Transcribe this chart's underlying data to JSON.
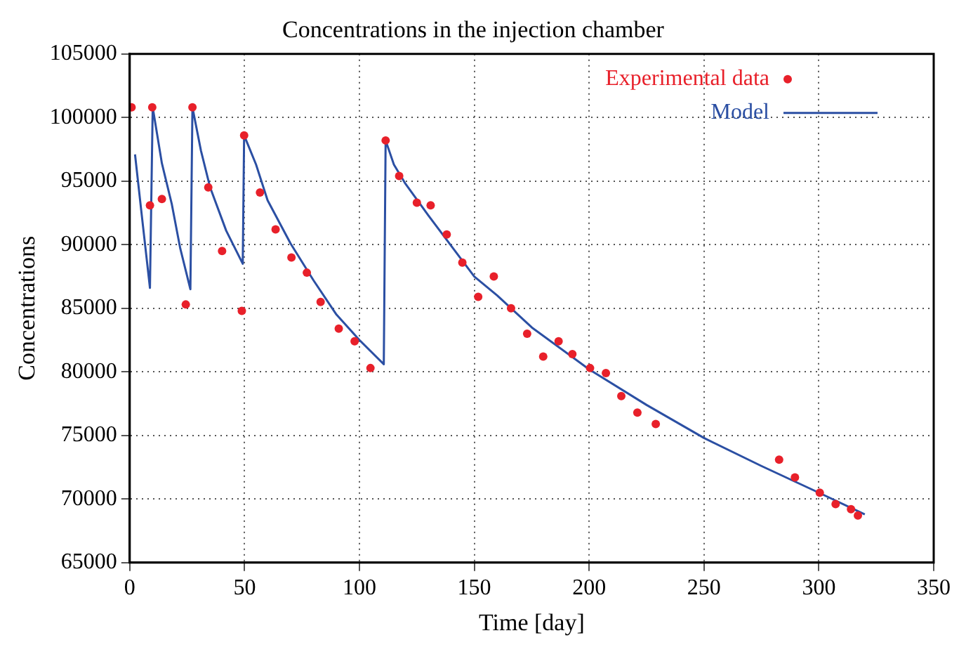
{
  "chart_data": {
    "type": "scatter",
    "title": "Concentrations in the injection chamber",
    "xlabel": "Time [day]",
    "ylabel": "Concentrations",
    "xlim": [
      0,
      350
    ],
    "xticks": [
      0,
      50,
      100,
      150,
      200,
      250,
      300,
      350
    ],
    "ylim": [
      65000,
      105000
    ],
    "yticks": [
      65000,
      70000,
      75000,
      80000,
      85000,
      90000,
      95000,
      100000,
      105000
    ],
    "grid": true,
    "legend": "top right",
    "series": [
      {
        "name": "Experimental data",
        "type": "scatter",
        "marker": "circle",
        "color": "#e8202a",
        "x": [
          0.8,
          8.8,
          9.8,
          14,
          24.4,
          27.3,
          34.2,
          40.2,
          48.8,
          49.8,
          56.7,
          63.5,
          70.4,
          77.1,
          83.1,
          91,
          97.9,
          104.8,
          111.4,
          117.3,
          125,
          131,
          138,
          144.8,
          151.7,
          158.5,
          166,
          173,
          180,
          186.7,
          192.7,
          200.4,
          207.3,
          214,
          221,
          229,
          282.7,
          289.6,
          300.4,
          307.3,
          314,
          317
        ],
        "values": [
          100800,
          93100,
          100800,
          93600,
          85300,
          100800,
          94500,
          89500,
          84800,
          98600,
          94100,
          91200,
          89000,
          87800,
          85500,
          83400,
          82400,
          80300,
          98200,
          95400,
          93300,
          93100,
          90800,
          88600,
          85900,
          87500,
          85000,
          83000,
          81200,
          82400,
          81400,
          80300,
          79900,
          78100,
          76800,
          75900,
          73100,
          71700,
          70500,
          69600,
          69200,
          68700
        ]
      },
      {
        "name": "Model",
        "type": "line",
        "marker": "none",
        "color": "#2b4fa3",
        "x": [
          2.3,
          5,
          8.8,
          10,
          14,
          18.3,
          22,
          26.4,
          27.3,
          31,
          35,
          42,
          49.2,
          49.8,
          55,
          60,
          70,
          80,
          90,
          100,
          110.6,
          111.4,
          115,
          120,
          130,
          140,
          150,
          160,
          175,
          200,
          225,
          250,
          275,
          300,
          320
        ],
        "values": [
          97100,
          92700,
          86600,
          100800,
          96400,
          93200,
          89700,
          86500,
          100800,
          97400,
          94500,
          91100,
          88500,
          98600,
          96300,
          93500,
          90100,
          87200,
          84500,
          82500,
          80600,
          98200,
          96300,
          94800,
          92300,
          89900,
          87500,
          86000,
          83500,
          80200,
          77400,
          74800,
          72600,
          70500,
          68800
        ]
      }
    ]
  }
}
